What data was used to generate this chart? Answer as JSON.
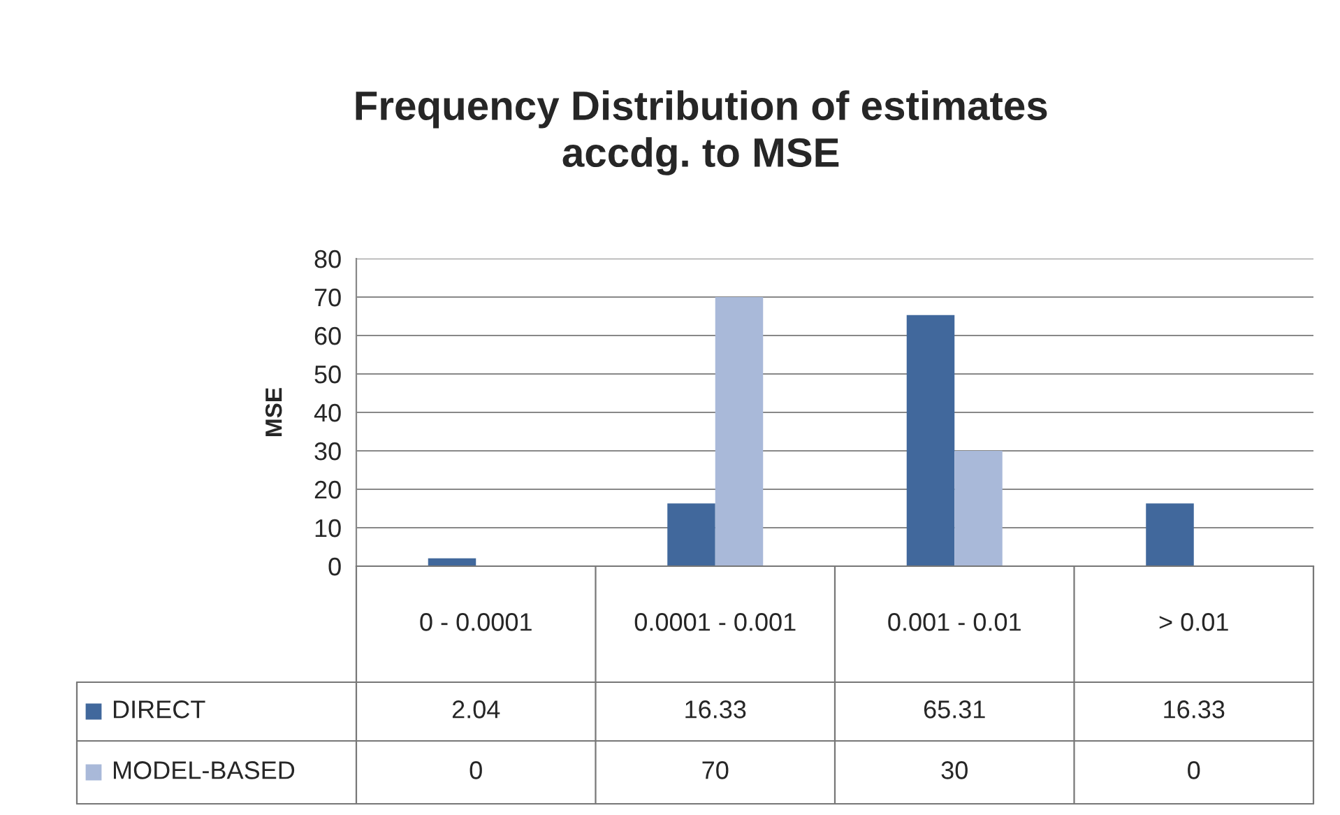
{
  "chart_data": {
    "type": "bar",
    "title": "Frequency Distribution of estimates\naccdg. to MSE",
    "ylabel": "MSE",
    "categories": [
      "0 - 0.0001",
      "0.0001 - 0.001",
      "0.001 - 0.01",
      "> 0.01"
    ],
    "series": [
      {
        "name": "DIRECT",
        "color": "#41689c",
        "values": [
          2.04,
          16.33,
          65.31,
          16.33
        ]
      },
      {
        "name": "MODEL-BASED",
        "color": "#a9b9d9",
        "values": [
          0,
          70,
          30,
          0
        ]
      }
    ],
    "ylim": [
      0,
      80
    ],
    "yticks": [
      0,
      10,
      20,
      30,
      40,
      50,
      60,
      70,
      80
    ],
    "grid": "y",
    "legend": "bottom",
    "data_labels": true
  }
}
